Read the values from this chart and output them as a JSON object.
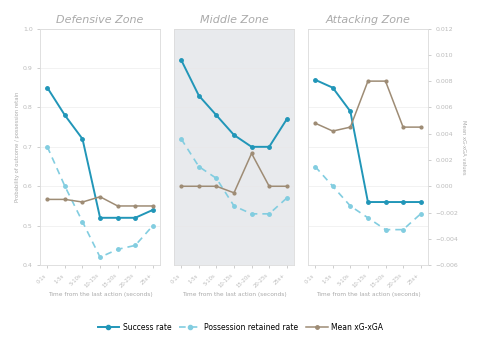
{
  "x_labels": [
    "0-1s",
    "1-5s",
    "5-10s",
    "10-15s",
    "15-20s",
    "20-25s",
    "25s+"
  ],
  "x_ticks": [
    0,
    1,
    2,
    3,
    4,
    5,
    6
  ],
  "defensive": {
    "title": "Defensive Zone",
    "success": [
      0.85,
      0.78,
      0.72,
      0.52,
      0.52,
      0.52,
      0.54
    ],
    "possession": [
      0.7,
      0.6,
      0.51,
      0.42,
      0.44,
      0.45,
      0.5
    ],
    "xg": [
      -0.001,
      -0.001,
      -0.0012,
      -0.0008,
      -0.0015,
      -0.0015,
      -0.0015
    ]
  },
  "middle": {
    "title": "Middle Zone",
    "success": [
      0.92,
      0.83,
      0.78,
      0.73,
      0.7,
      0.7,
      0.77
    ],
    "possession": [
      0.72,
      0.65,
      0.62,
      0.55,
      0.53,
      0.53,
      0.57
    ],
    "xg": [
      0.0,
      0.0,
      0.0,
      -0.0005,
      0.0025,
      0.0,
      0.0
    ]
  },
  "attacking": {
    "title": "Attacking Zone",
    "success": [
      0.87,
      0.85,
      0.79,
      0.56,
      0.56,
      0.56,
      0.56
    ],
    "possession": [
      0.65,
      0.6,
      0.55,
      0.52,
      0.49,
      0.49,
      0.53
    ],
    "xg": [
      0.0048,
      0.0042,
      0.0045,
      0.008,
      0.008,
      0.0045,
      0.0045
    ]
  },
  "ylim_left": [
    0.4,
    1.0
  ],
  "ylim_right": [
    -0.006,
    0.012
  ],
  "yticks_left": [
    0.4,
    0.5,
    0.6,
    0.7,
    0.8,
    0.9,
    1.0
  ],
  "yticks_right": [
    -0.006,
    -0.004,
    -0.002,
    0.0,
    0.002,
    0.004,
    0.006,
    0.008,
    0.01,
    0.012
  ],
  "color_success": "#2196b8",
  "color_possession": "#82cde0",
  "color_xg": "#9e8c75",
  "panel_bg_middle": "#e8eaed",
  "title_color": "#aaaaaa",
  "axis_label_color": "#aaaaaa",
  "tick_color": "#bbbbbb",
  "spine_color": "#dddddd",
  "grid_color": "#e8e8e8",
  "ylabel_left": "Probability of outcome / possession retain",
  "ylabel_right": "Mean xG-xGA values",
  "xlabel": "Time from the last action (seconds)",
  "legend_labels": [
    "Success rate",
    "Possession retained rate",
    "Mean xG-xGA"
  ],
  "fig_width": 4.81,
  "fig_height": 3.39,
  "dpi": 100
}
